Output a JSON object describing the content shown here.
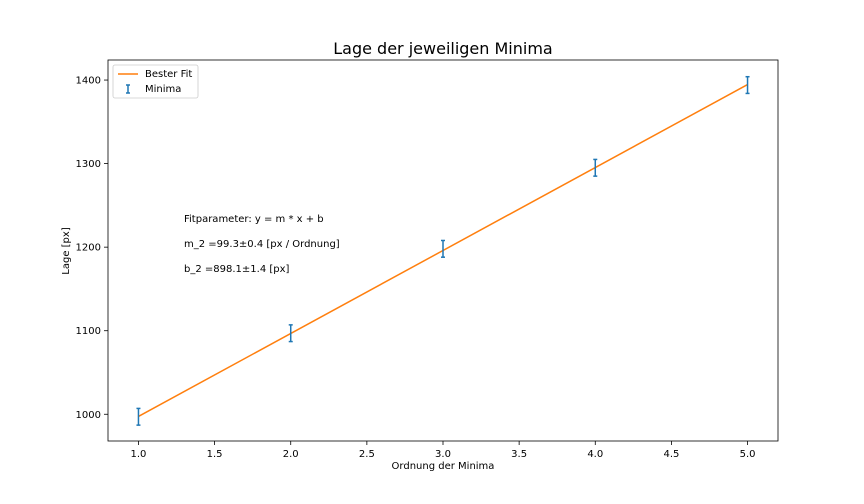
{
  "chart_data": {
    "type": "scatter",
    "title": "Lage der jeweiligen Minima",
    "xlabel": "Ordnung der Minima",
    "ylabel": "Lage [px]",
    "xlim": [
      0.8,
      5.2
    ],
    "ylim": [
      968,
      1424
    ],
    "xticks": [
      1.0,
      1.5,
      2.0,
      2.5,
      3.0,
      3.5,
      4.0,
      4.5,
      5.0
    ],
    "xtick_labels": [
      "1.0",
      "1.5",
      "2.0",
      "2.5",
      "3.0",
      "3.5",
      "4.0",
      "4.5",
      "5.0"
    ],
    "yticks": [
      1000,
      1100,
      1200,
      1300,
      1400
    ],
    "ytick_labels": [
      "1000",
      "1100",
      "1200",
      "1300",
      "1400"
    ],
    "grid": false,
    "legend_position": "top-left",
    "series": [
      {
        "name": "Bester Fit",
        "kind": "line",
        "color": "#ff7f0e",
        "x": [
          1,
          5
        ],
        "y": [
          997.4,
          1394.6
        ]
      },
      {
        "name": "Minima",
        "kind": "errorbar",
        "color": "#1f77b4",
        "x": [
          1,
          2,
          3,
          4,
          5
        ],
        "y": [
          997,
          1097,
          1198,
          1295,
          1394
        ],
        "yerr": [
          10,
          10,
          10,
          10,
          10
        ]
      }
    ],
    "annotations": [
      "Fitparameter: y = m * x + b",
      "m_2 =99.3±0.4 [px / Ordnung]",
      "b_2 =898.1±1.4 [px]"
    ]
  }
}
